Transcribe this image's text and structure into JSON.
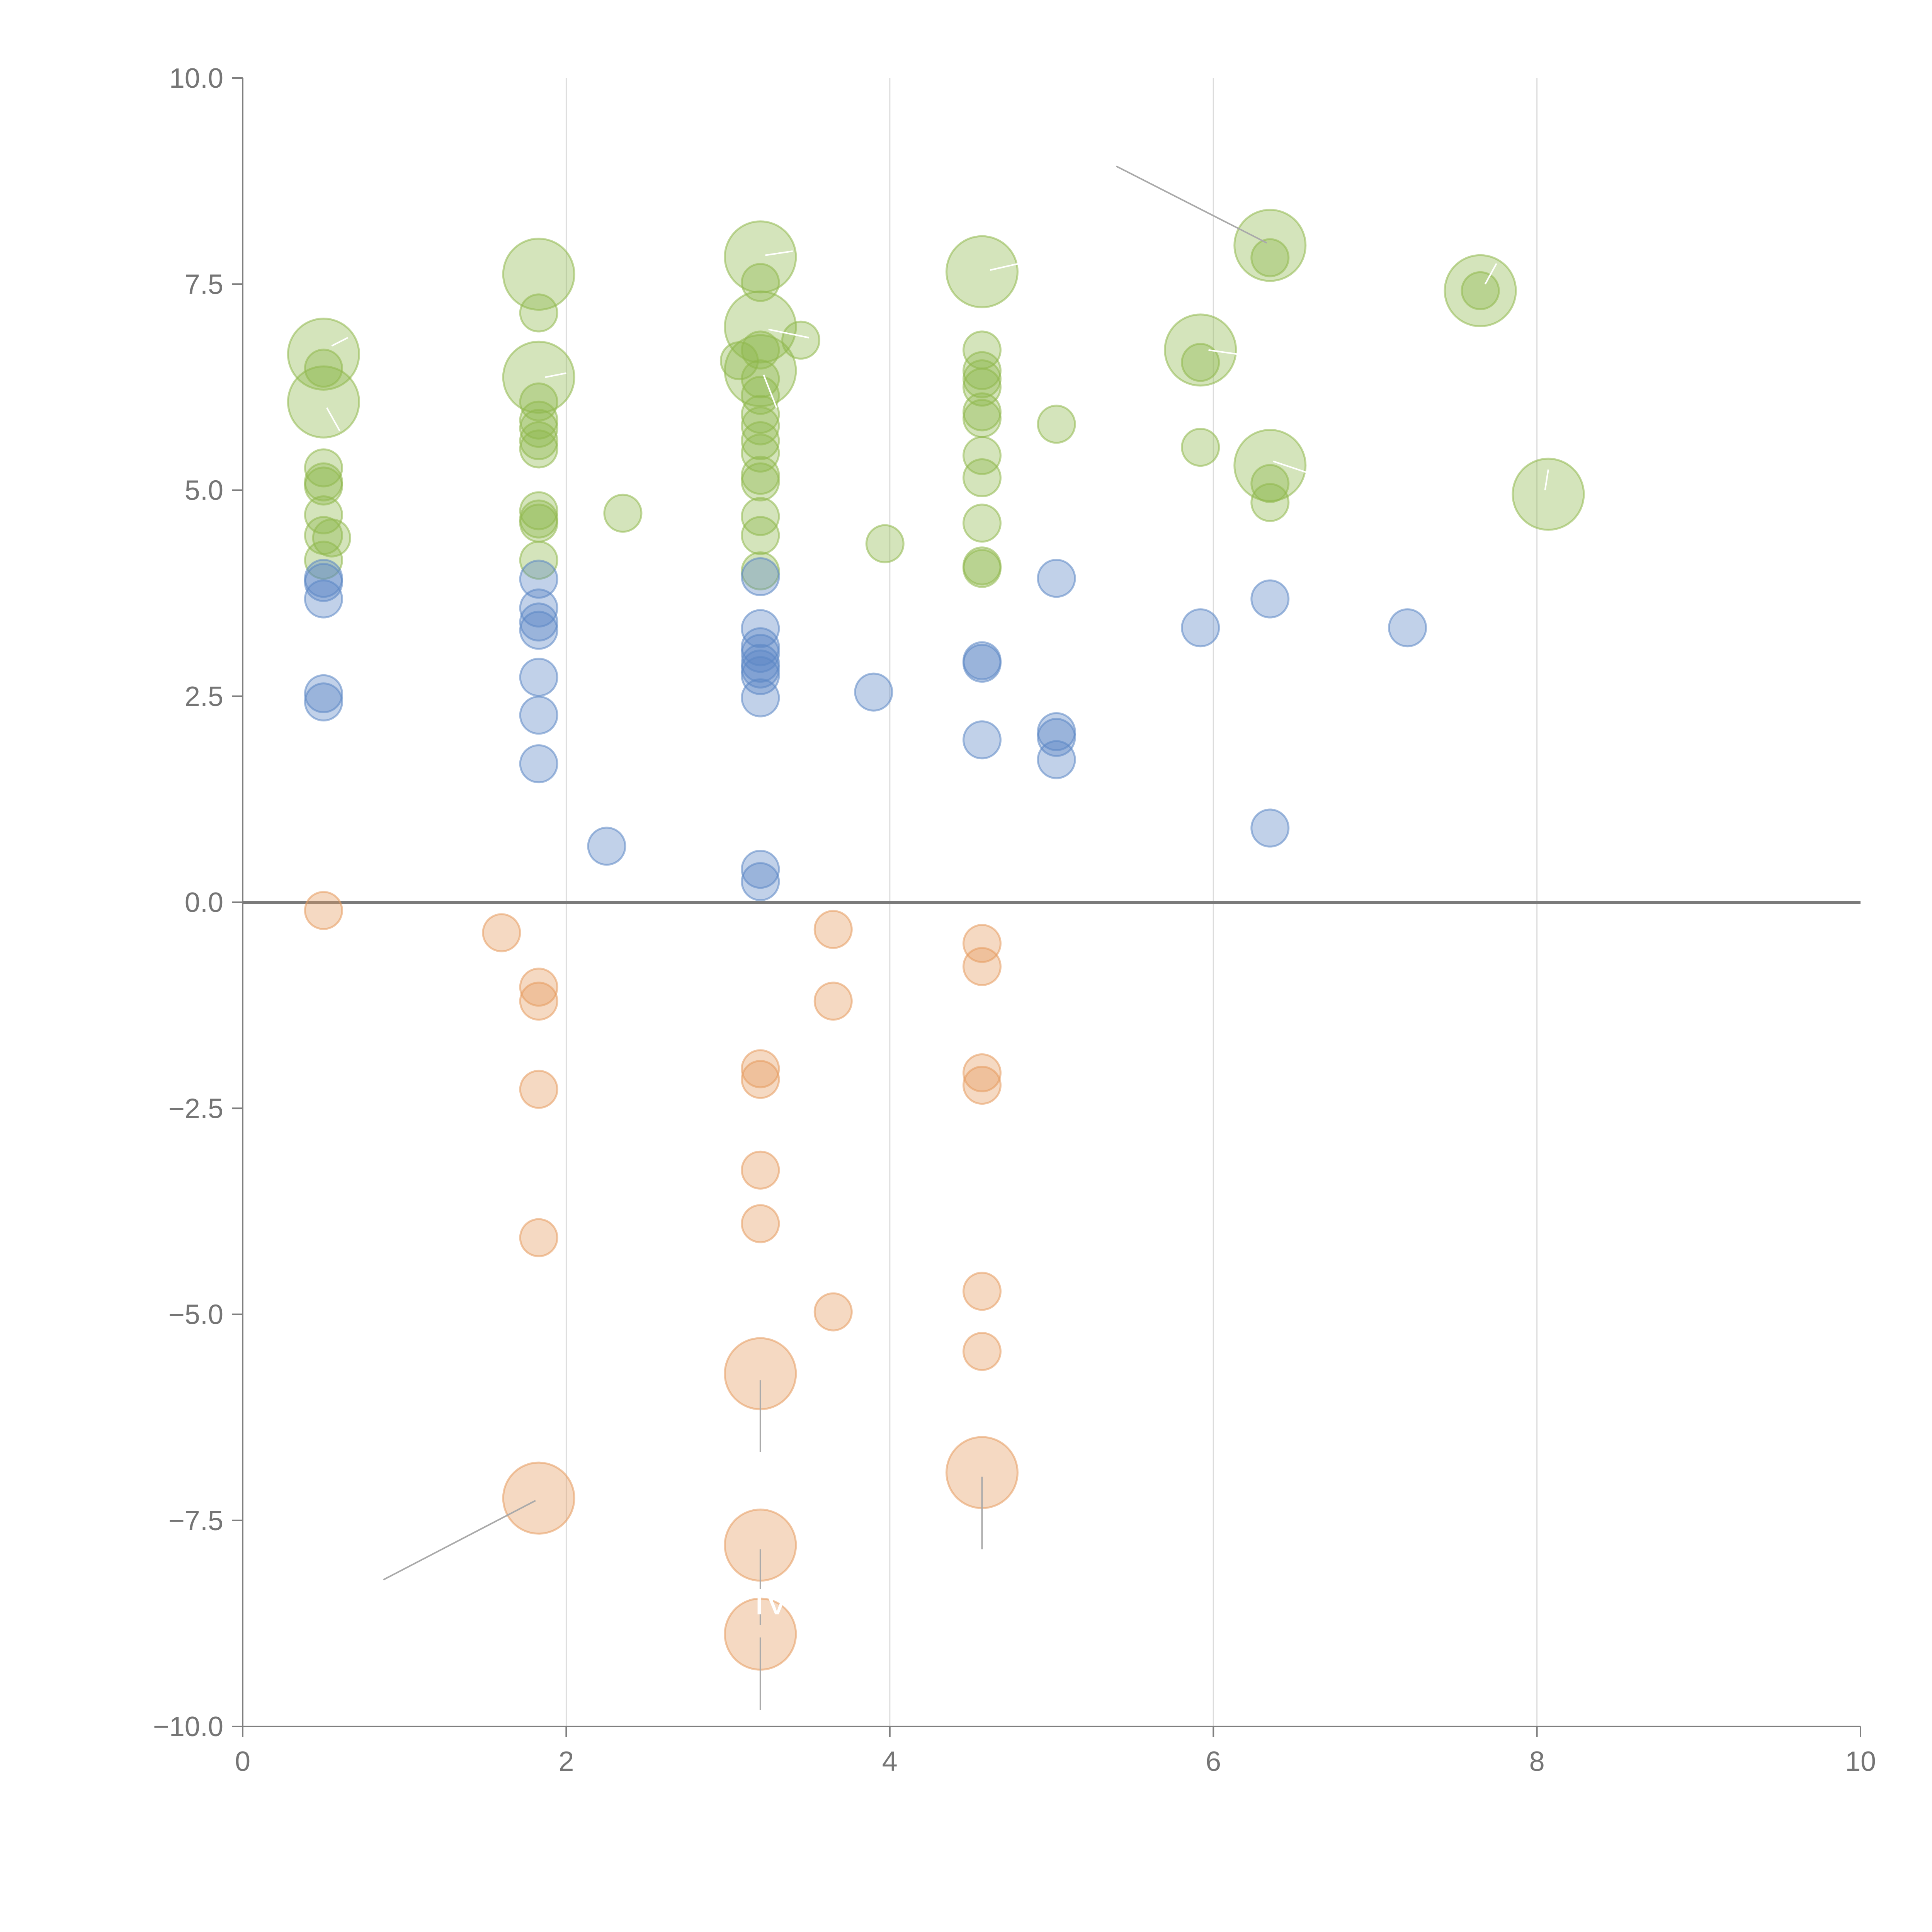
{
  "chart_data": {
    "type": "scatter",
    "variant": "bubble",
    "title": "",
    "xlabel": "",
    "ylabel": "",
    "xlim": [
      0,
      10
    ],
    "ylim": [
      -10,
      10
    ],
    "x_ticks": [
      0,
      2,
      4,
      6,
      8,
      10
    ],
    "x_tick_labels": [
      "0",
      "2",
      "4",
      "6",
      "8",
      "10"
    ],
    "y_ticks": [
      10,
      7.5,
      5,
      2.5,
      0,
      -2.5,
      -5,
      -7.5,
      -10
    ],
    "y_tick_labels": [
      "10.0",
      "7.5",
      "5.0",
      "2.5",
      "0.0",
      "−2.5",
      "−5.0",
      "−7.5",
      "−10.0"
    ],
    "vertical_grid_at": [
      2,
      4,
      6,
      8
    ],
    "reference_line_y": 0,
    "legend": "none",
    "series": [
      {
        "name": "green",
        "color": "#8fb84d",
        "points": [
          {
            "x": 0.5,
            "y": 6.65,
            "size": "large"
          },
          {
            "x": 0.5,
            "y": 6.07,
            "size": "large"
          },
          {
            "x": 0.5,
            "y": 6.48,
            "size": "small"
          },
          {
            "x": 0.5,
            "y": 5.27,
            "size": "small"
          },
          {
            "x": 0.5,
            "y": 5.1,
            "size": "small"
          },
          {
            "x": 0.5,
            "y": 5.05,
            "size": "small"
          },
          {
            "x": 0.5,
            "y": 4.7,
            "size": "small"
          },
          {
            "x": 0.5,
            "y": 4.45,
            "size": "small"
          },
          {
            "x": 0.55,
            "y": 4.42,
            "size": "small"
          },
          {
            "x": 0.5,
            "y": 4.15,
            "size": "small"
          },
          {
            "x": 1.83,
            "y": 7.62,
            "size": "large"
          },
          {
            "x": 1.83,
            "y": 6.37,
            "size": "large"
          },
          {
            "x": 1.83,
            "y": 7.15,
            "size": "small"
          },
          {
            "x": 1.83,
            "y": 6.07,
            "size": "small"
          },
          {
            "x": 1.83,
            "y": 5.85,
            "size": "small"
          },
          {
            "x": 1.83,
            "y": 5.75,
            "size": "small"
          },
          {
            "x": 1.83,
            "y": 5.6,
            "size": "small"
          },
          {
            "x": 1.83,
            "y": 5.5,
            "size": "small"
          },
          {
            "x": 1.83,
            "y": 4.75,
            "size": "small"
          },
          {
            "x": 1.83,
            "y": 4.65,
            "size": "small"
          },
          {
            "x": 1.83,
            "y": 4.6,
            "size": "small"
          },
          {
            "x": 1.83,
            "y": 4.15,
            "size": "small"
          },
          {
            "x": 2.35,
            "y": 4.72,
            "size": "small"
          },
          {
            "x": 3.2,
            "y": 7.83,
            "size": "large"
          },
          {
            "x": 3.2,
            "y": 6.98,
            "size": "large"
          },
          {
            "x": 3.2,
            "y": 6.45,
            "size": "large"
          },
          {
            "x": 3.2,
            "y": 7.52,
            "size": "small"
          },
          {
            "x": 3.45,
            "y": 6.82,
            "size": "small"
          },
          {
            "x": 3.07,
            "y": 6.57,
            "size": "small"
          },
          {
            "x": 3.2,
            "y": 6.7,
            "size": "small"
          },
          {
            "x": 3.2,
            "y": 6.35,
            "size": "small"
          },
          {
            "x": 3.2,
            "y": 6.15,
            "size": "small"
          },
          {
            "x": 3.2,
            "y": 5.92,
            "size": "small"
          },
          {
            "x": 3.2,
            "y": 5.78,
            "size": "small"
          },
          {
            "x": 3.2,
            "y": 5.6,
            "size": "small"
          },
          {
            "x": 3.2,
            "y": 5.45,
            "size": "small"
          },
          {
            "x": 3.2,
            "y": 5.18,
            "size": "small"
          },
          {
            "x": 3.2,
            "y": 5.1,
            "size": "small"
          },
          {
            "x": 3.2,
            "y": 4.68,
            "size": "small"
          },
          {
            "x": 3.2,
            "y": 4.45,
            "size": "small"
          },
          {
            "x": 3.2,
            "y": 4.02,
            "size": "small"
          },
          {
            "x": 3.97,
            "y": 4.35,
            "size": "small"
          },
          {
            "x": 4.57,
            "y": 7.65,
            "size": "large"
          },
          {
            "x": 4.57,
            "y": 6.7,
            "size": "small"
          },
          {
            "x": 4.57,
            "y": 6.45,
            "size": "small"
          },
          {
            "x": 4.57,
            "y": 6.35,
            "size": "small"
          },
          {
            "x": 4.57,
            "y": 6.25,
            "size": "small"
          },
          {
            "x": 4.57,
            "y": 5.95,
            "size": "small"
          },
          {
            "x": 4.57,
            "y": 5.87,
            "size": "small"
          },
          {
            "x": 4.57,
            "y": 5.42,
            "size": "small"
          },
          {
            "x": 4.57,
            "y": 5.15,
            "size": "small"
          },
          {
            "x": 4.57,
            "y": 4.6,
            "size": "small"
          },
          {
            "x": 4.57,
            "y": 4.08,
            "size": "small"
          },
          {
            "x": 4.57,
            "y": 4.05,
            "size": "small"
          },
          {
            "x": 5.03,
            "y": 5.8,
            "size": "small"
          },
          {
            "x": 5.92,
            "y": 6.7,
            "size": "large"
          },
          {
            "x": 5.92,
            "y": 6.55,
            "size": "small"
          },
          {
            "x": 5.92,
            "y": 5.52,
            "size": "small"
          },
          {
            "x": 6.35,
            "y": 7.97,
            "size": "large"
          },
          {
            "x": 6.35,
            "y": 7.82,
            "size": "small"
          },
          {
            "x": 6.35,
            "y": 5.3,
            "size": "large"
          },
          {
            "x": 6.35,
            "y": 5.08,
            "size": "small"
          },
          {
            "x": 6.35,
            "y": 4.85,
            "size": "small"
          },
          {
            "x": 7.65,
            "y": 7.42,
            "size": "large"
          },
          {
            "x": 7.65,
            "y": 7.42,
            "size": "small"
          },
          {
            "x": 8.07,
            "y": 4.95,
            "size": "large"
          }
        ]
      },
      {
        "name": "blue",
        "color": "#5b87c4",
        "points": [
          {
            "x": 0.5,
            "y": 3.93,
            "size": "small"
          },
          {
            "x": 0.5,
            "y": 3.88,
            "size": "small"
          },
          {
            "x": 0.5,
            "y": 3.68,
            "size": "small"
          },
          {
            "x": 0.5,
            "y": 2.53,
            "size": "small"
          },
          {
            "x": 0.5,
            "y": 2.43,
            "size": "small"
          },
          {
            "x": 1.83,
            "y": 3.92,
            "size": "small"
          },
          {
            "x": 1.83,
            "y": 3.57,
            "size": "small"
          },
          {
            "x": 1.83,
            "y": 3.4,
            "size": "small"
          },
          {
            "x": 1.83,
            "y": 3.3,
            "size": "small"
          },
          {
            "x": 1.83,
            "y": 2.73,
            "size": "small"
          },
          {
            "x": 1.83,
            "y": 2.27,
            "size": "small"
          },
          {
            "x": 1.83,
            "y": 1.68,
            "size": "small"
          },
          {
            "x": 2.25,
            "y": 0.68,
            "size": "small"
          },
          {
            "x": 3.2,
            "y": 3.95,
            "size": "small"
          },
          {
            "x": 3.2,
            "y": 3.32,
            "size": "small"
          },
          {
            "x": 3.2,
            "y": 3.1,
            "size": "small"
          },
          {
            "x": 3.2,
            "y": 3.02,
            "size": "small"
          },
          {
            "x": 3.2,
            "y": 2.9,
            "size": "small"
          },
          {
            "x": 3.2,
            "y": 2.83,
            "size": "small"
          },
          {
            "x": 3.2,
            "y": 2.75,
            "size": "small"
          },
          {
            "x": 3.2,
            "y": 2.48,
            "size": "small"
          },
          {
            "x": 3.2,
            "y": 0.4,
            "size": "small"
          },
          {
            "x": 3.2,
            "y": 0.25,
            "size": "small"
          },
          {
            "x": 3.9,
            "y": 2.55,
            "size": "small"
          },
          {
            "x": 4.57,
            "y": 2.93,
            "size": "small"
          },
          {
            "x": 4.57,
            "y": 2.9,
            "size": "small"
          },
          {
            "x": 4.57,
            "y": 1.97,
            "size": "small"
          },
          {
            "x": 5.03,
            "y": 3.93,
            "size": "small"
          },
          {
            "x": 5.03,
            "y": 2.07,
            "size": "small"
          },
          {
            "x": 5.03,
            "y": 2.0,
            "size": "small"
          },
          {
            "x": 5.03,
            "y": 1.73,
            "size": "small"
          },
          {
            "x": 5.92,
            "y": 3.33,
            "size": "small"
          },
          {
            "x": 6.35,
            "y": 3.68,
            "size": "small"
          },
          {
            "x": 6.35,
            "y": 0.9,
            "size": "small"
          },
          {
            "x": 7.2,
            "y": 3.33,
            "size": "small"
          }
        ]
      },
      {
        "name": "orange",
        "color": "#e69b5e",
        "points": [
          {
            "x": 0.5,
            "y": -0.1,
            "size": "small"
          },
          {
            "x": 1.6,
            "y": -0.37,
            "size": "small"
          },
          {
            "x": 1.83,
            "y": -1.03,
            "size": "small"
          },
          {
            "x": 1.83,
            "y": -1.2,
            "size": "small"
          },
          {
            "x": 1.83,
            "y": -2.27,
            "size": "small"
          },
          {
            "x": 1.83,
            "y": -4.07,
            "size": "small"
          },
          {
            "x": 1.83,
            "y": -7.23,
            "size": "large"
          },
          {
            "x": 3.2,
            "y": -2.02,
            "size": "small"
          },
          {
            "x": 3.2,
            "y": -2.15,
            "size": "small"
          },
          {
            "x": 3.2,
            "y": -3.25,
            "size": "small"
          },
          {
            "x": 3.2,
            "y": -3.9,
            "size": "small"
          },
          {
            "x": 3.2,
            "y": -5.72,
            "size": "large"
          },
          {
            "x": 3.2,
            "y": -7.8,
            "size": "large"
          },
          {
            "x": 3.2,
            "y": -8.88,
            "size": "large"
          },
          {
            "x": 3.65,
            "y": -0.33,
            "size": "small"
          },
          {
            "x": 3.65,
            "y": -1.2,
            "size": "small"
          },
          {
            "x": 3.65,
            "y": -4.97,
            "size": "small"
          },
          {
            "x": 4.57,
            "y": -0.5,
            "size": "small"
          },
          {
            "x": 4.57,
            "y": -0.78,
            "size": "small"
          },
          {
            "x": 4.57,
            "y": -2.07,
            "size": "small"
          },
          {
            "x": 4.57,
            "y": -2.22,
            "size": "small"
          },
          {
            "x": 4.57,
            "y": -4.72,
            "size": "small"
          },
          {
            "x": 4.57,
            "y": -5.45,
            "size": "small"
          },
          {
            "x": 4.57,
            "y": -6.92,
            "size": "large"
          }
        ]
      }
    ],
    "leader_lines": [
      {
        "x1": 0.55,
        "y1": 6.75,
        "x2": 0.65,
        "y2": 6.85,
        "color": "#ffffff"
      },
      {
        "x1": 0.52,
        "y1": 6.0,
        "x2": 0.6,
        "y2": 5.72,
        "color": "#ffffff"
      },
      {
        "x1": 1.87,
        "y1": 6.37,
        "x2": 2.0,
        "y2": 6.42,
        "color": "#ffffff"
      },
      {
        "x1": 3.23,
        "y1": 7.85,
        "x2": 3.4,
        "y2": 7.9,
        "color": "#ffffff"
      },
      {
        "x1": 3.22,
        "y1": 6.4,
        "x2": 3.3,
        "y2": 6.0,
        "color": "#ffffff"
      },
      {
        "x1": 3.25,
        "y1": 6.95,
        "x2": 3.5,
        "y2": 6.85,
        "color": "#ffffff"
      },
      {
        "x1": 4.62,
        "y1": 7.67,
        "x2": 4.8,
        "y2": 7.75,
        "color": "#ffffff"
      },
      {
        "x1": 5.97,
        "y1": 6.7,
        "x2": 6.15,
        "y2": 6.65,
        "color": "#ffffff"
      },
      {
        "x1": 6.37,
        "y1": 5.35,
        "x2": 6.6,
        "y2": 5.2,
        "color": "#ffffff"
      },
      {
        "x1": 7.68,
        "y1": 7.5,
        "x2": 7.75,
        "y2": 7.75,
        "color": "#ffffff"
      },
      {
        "x1": 8.05,
        "y1": 5.0,
        "x2": 8.07,
        "y2": 5.25,
        "color": "#ffffff"
      },
      {
        "x1": 5.4,
        "y1": 8.93,
        "x2": 6.33,
        "y2": 8.0,
        "color": "#aaaaaa"
      },
      {
        "x1": 0.87,
        "y1": -8.22,
        "x2": 1.81,
        "y2": -7.26,
        "color": "#aaaaaa"
      },
      {
        "x1": 3.2,
        "y1": -5.8,
        "x2": 3.2,
        "y2": -6.67,
        "color": "#aaaaaa"
      },
      {
        "x1": 3.2,
        "y1": -7.85,
        "x2": 3.2,
        "y2": -8.77,
        "color": "#aaaaaa"
      },
      {
        "x1": 3.2,
        "y1": -8.92,
        "x2": 3.2,
        "y2": -9.8,
        "color": "#aaaaaa"
      },
      {
        "x1": 4.57,
        "y1": -6.97,
        "x2": 4.57,
        "y2": -7.85,
        "color": "#aaaaaa"
      }
    ],
    "annotations": [
      {
        "text": "IV",
        "x": 3.27,
        "y": -8.64
      }
    ]
  }
}
